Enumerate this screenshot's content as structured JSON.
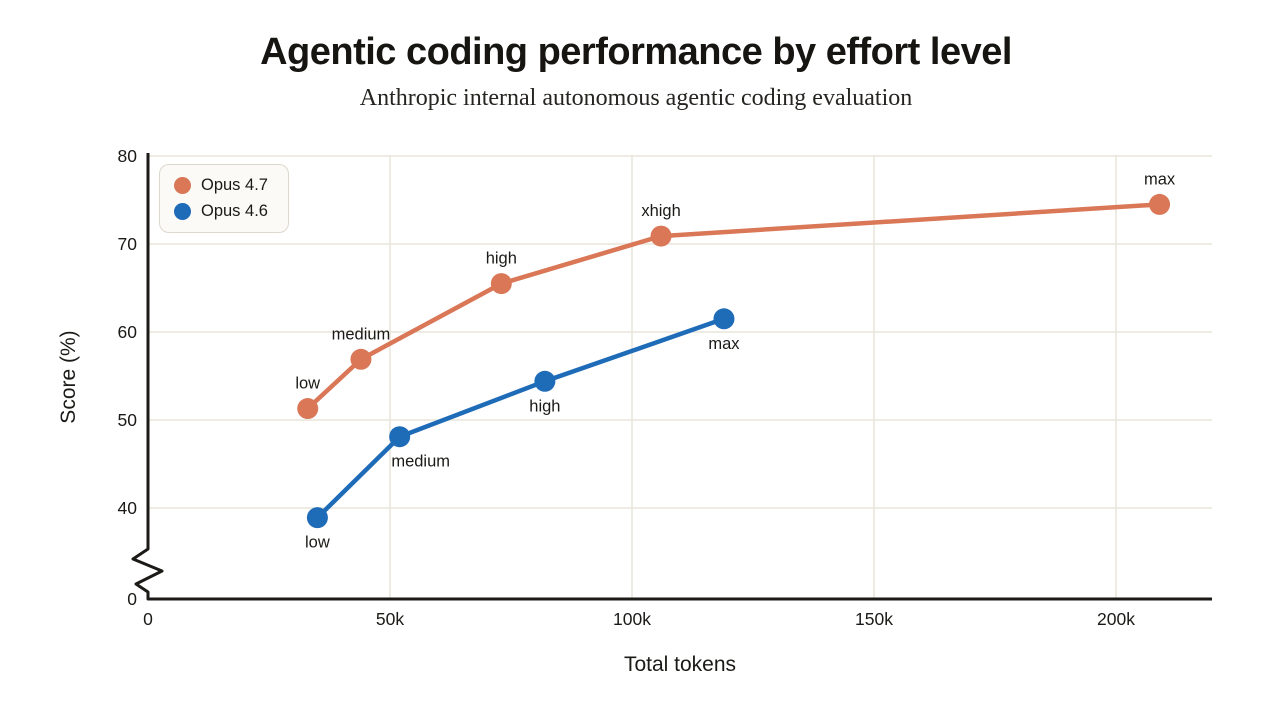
{
  "header": {
    "title": "Agentic coding performance by effort level",
    "subtitle": "Anthropic internal autonomous agentic coding evaluation"
  },
  "chart_data": {
    "type": "line",
    "title": "Agentic coding performance by effort level",
    "subtitle": "Anthropic internal autonomous agentic coding evaluation",
    "xlabel": "Total tokens",
    "ylabel": "Score (%)",
    "grid": true,
    "legend_position": "top-left",
    "x_axis": {
      "ticks": [
        0,
        50000,
        100000,
        150000,
        200000
      ],
      "tick_labels": [
        "0",
        "50k",
        "100k",
        "150k",
        "200k"
      ],
      "range": [
        0,
        220000
      ]
    },
    "y_axis": {
      "ticks": [
        0,
        40,
        50,
        60,
        70,
        80
      ],
      "tick_labels": [
        "0",
        "40",
        "50",
        "60",
        "70",
        "80"
      ],
      "range": [
        0,
        80
      ],
      "axis_break_between": [
        0,
        40
      ]
    },
    "colors": {
      "axis": "#1b1a17",
      "gridline": "#e9e5d9",
      "text": "#1b1a17"
    },
    "series": [
      {
        "name": "Opus 4.7",
        "color": "#d97757",
        "label_placement": "above",
        "points": [
          {
            "label": "low",
            "tokens": 33000,
            "score": 51.3
          },
          {
            "label": "medium",
            "tokens": 44000,
            "score": 56.9
          },
          {
            "label": "high",
            "tokens": 73000,
            "score": 65.5
          },
          {
            "label": "xhigh",
            "tokens": 106000,
            "score": 70.9
          },
          {
            "label": "max",
            "tokens": 209000,
            "score": 74.5
          }
        ]
      },
      {
        "name": "Opus 4.6",
        "color": "#1e6bb8",
        "label_placement": "below",
        "points": [
          {
            "label": "low",
            "tokens": 35000,
            "score": 38.9
          },
          {
            "label": "medium",
            "tokens": 52000,
            "score": 48.1,
            "label_dx": 21
          },
          {
            "label": "high",
            "tokens": 82000,
            "score": 54.4
          },
          {
            "label": "max",
            "tokens": 119000,
            "score": 61.5
          }
        ]
      }
    ]
  }
}
